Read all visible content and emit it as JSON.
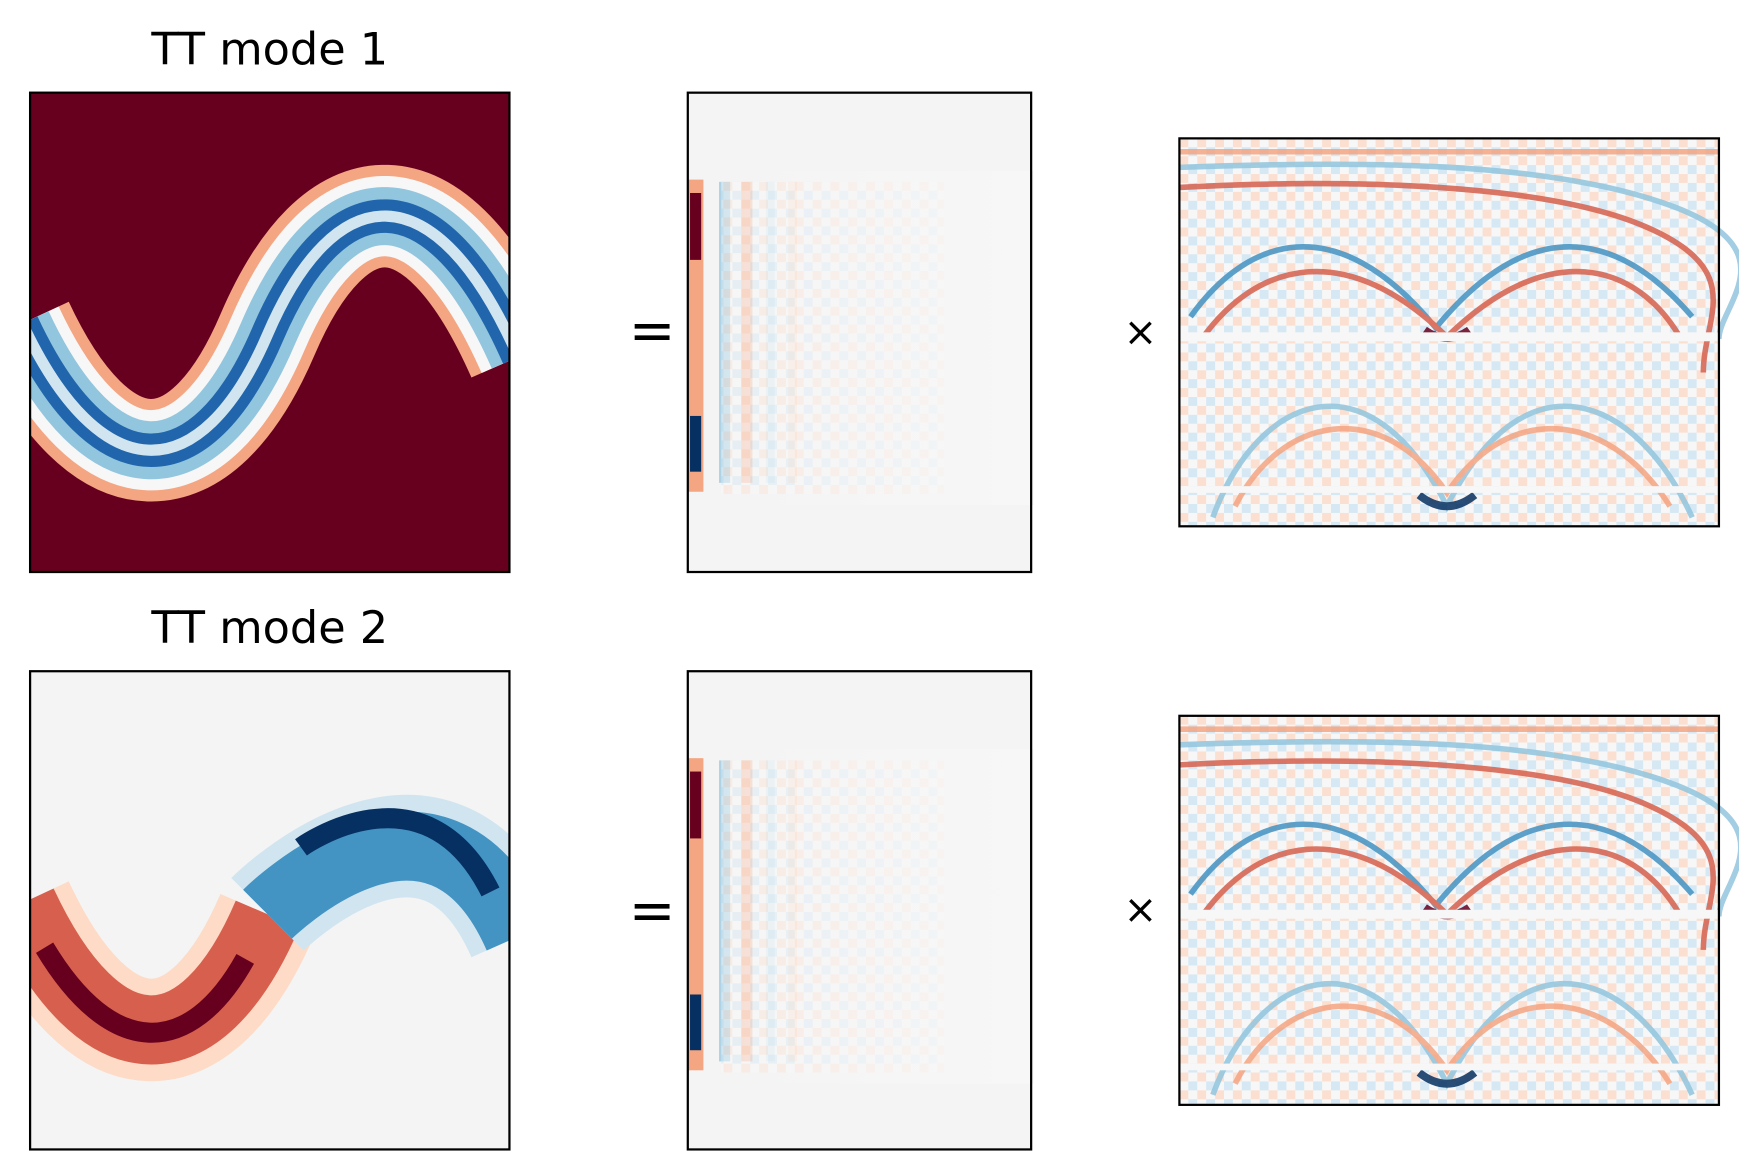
{
  "rows": [
    {
      "title": "TT mode 1",
      "equals": "=",
      "times": "×"
    },
    {
      "title": "TT mode 2",
      "equals": "=",
      "times": "×"
    }
  ]
}
